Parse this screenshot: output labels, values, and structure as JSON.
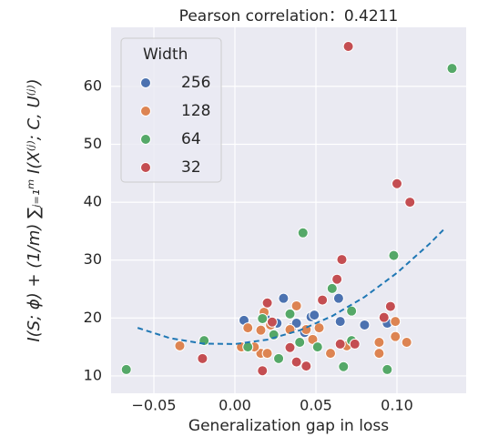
{
  "chart_data": {
    "type": "scatter",
    "title": "Pearson  correlation：0.4211",
    "xlabel": "Generalization gap in loss",
    "ylabel": "I(S; ϕ) + (1/m) ∑ⱼ₌₁ᵐ I(X⁽ʲ⁾; C, U⁽ʲ⁾)",
    "xlim": [
      -0.0764,
      0.1427
    ],
    "ylim": [
      7.0,
      70.2
    ],
    "xticks": [
      {
        "value": -0.05,
        "label": "−0.05"
      },
      {
        "value": 0,
        "label": "0.00"
      },
      0.05,
      {
        "value": 0.1,
        "label": "0.10"
      }
    ],
    "yticks": [
      10,
      20,
      30,
      40,
      50,
      60
    ],
    "grid": true,
    "legend_title": "Width",
    "legend_position": "upper left",
    "series": [
      {
        "name": "256",
        "color": "#4c72b0",
        "x": [
          0.0056,
          0.03,
          0.047,
          0.049,
          0.064,
          0.065,
          0.08,
          0.094,
          0.035,
          0.043,
          0.019,
          0.026,
          0.038
        ],
        "values": [
          19.6,
          23.4,
          20.2,
          20.5,
          23.4,
          19.4,
          18.8,
          19.1,
          18.3,
          17.5,
          19.9,
          19.1,
          19.1
        ]
      },
      {
        "name": "128",
        "color": "#dd8452",
        "x": [
          -0.034,
          0.008,
          0.016,
          0.018,
          0.022,
          0.016,
          0.02,
          0.034,
          0.038,
          0.044,
          0.048,
          0.052,
          0.059,
          0.069,
          0.089,
          0.089,
          0.099,
          0.099,
          0.106,
          0.004,
          0.012
        ],
        "values": [
          15.2,
          18.3,
          17.9,
          21.0,
          18.8,
          13.9,
          13.9,
          18.0,
          22.1,
          18.0,
          16.3,
          18.3,
          13.9,
          15.2,
          15.8,
          13.9,
          19.4,
          16.8,
          15.8,
          15.0,
          15.0
        ]
      },
      {
        "name": "64",
        "color": "#55a868",
        "x": [
          -0.067,
          -0.019,
          0.008,
          0.017,
          0.027,
          0.042,
          0.051,
          0.06,
          0.067,
          0.072,
          0.072,
          0.094,
          0.098,
          0.134,
          0.04,
          0.024,
          0.034
        ],
        "values": [
          11.1,
          16.1,
          15.0,
          19.9,
          13.0,
          34.7,
          15.0,
          25.1,
          11.6,
          21.2,
          16.1,
          11.1,
          30.8,
          63.1,
          15.8,
          17.1,
          20.7
        ]
      },
      {
        "name": "32",
        "color": "#c44e52",
        "x": [
          -0.02,
          0.017,
          0.02,
          0.023,
          0.034,
          0.038,
          0.044,
          0.054,
          0.063,
          0.066,
          0.065,
          0.07,
          0.074,
          0.092,
          0.096,
          0.1,
          0.108
        ],
        "values": [
          13.0,
          10.9,
          22.6,
          19.3,
          14.9,
          12.4,
          11.7,
          23.1,
          26.7,
          30.1,
          15.5,
          66.9,
          15.5,
          20.1,
          22.0,
          43.2,
          40.0
        ]
      }
    ],
    "trend_line": {
      "color": "#1f77b4",
      "x": [
        -0.06,
        -0.04,
        -0.02,
        0,
        0.02,
        0.04,
        0.06,
        0.08,
        0.1,
        0.12,
        0.13
      ],
      "values": [
        18.3,
        16.52,
        15.59,
        15.5,
        16.26,
        17.87,
        20.33,
        23.63,
        27.79,
        32.79,
        35.6
      ]
    }
  }
}
